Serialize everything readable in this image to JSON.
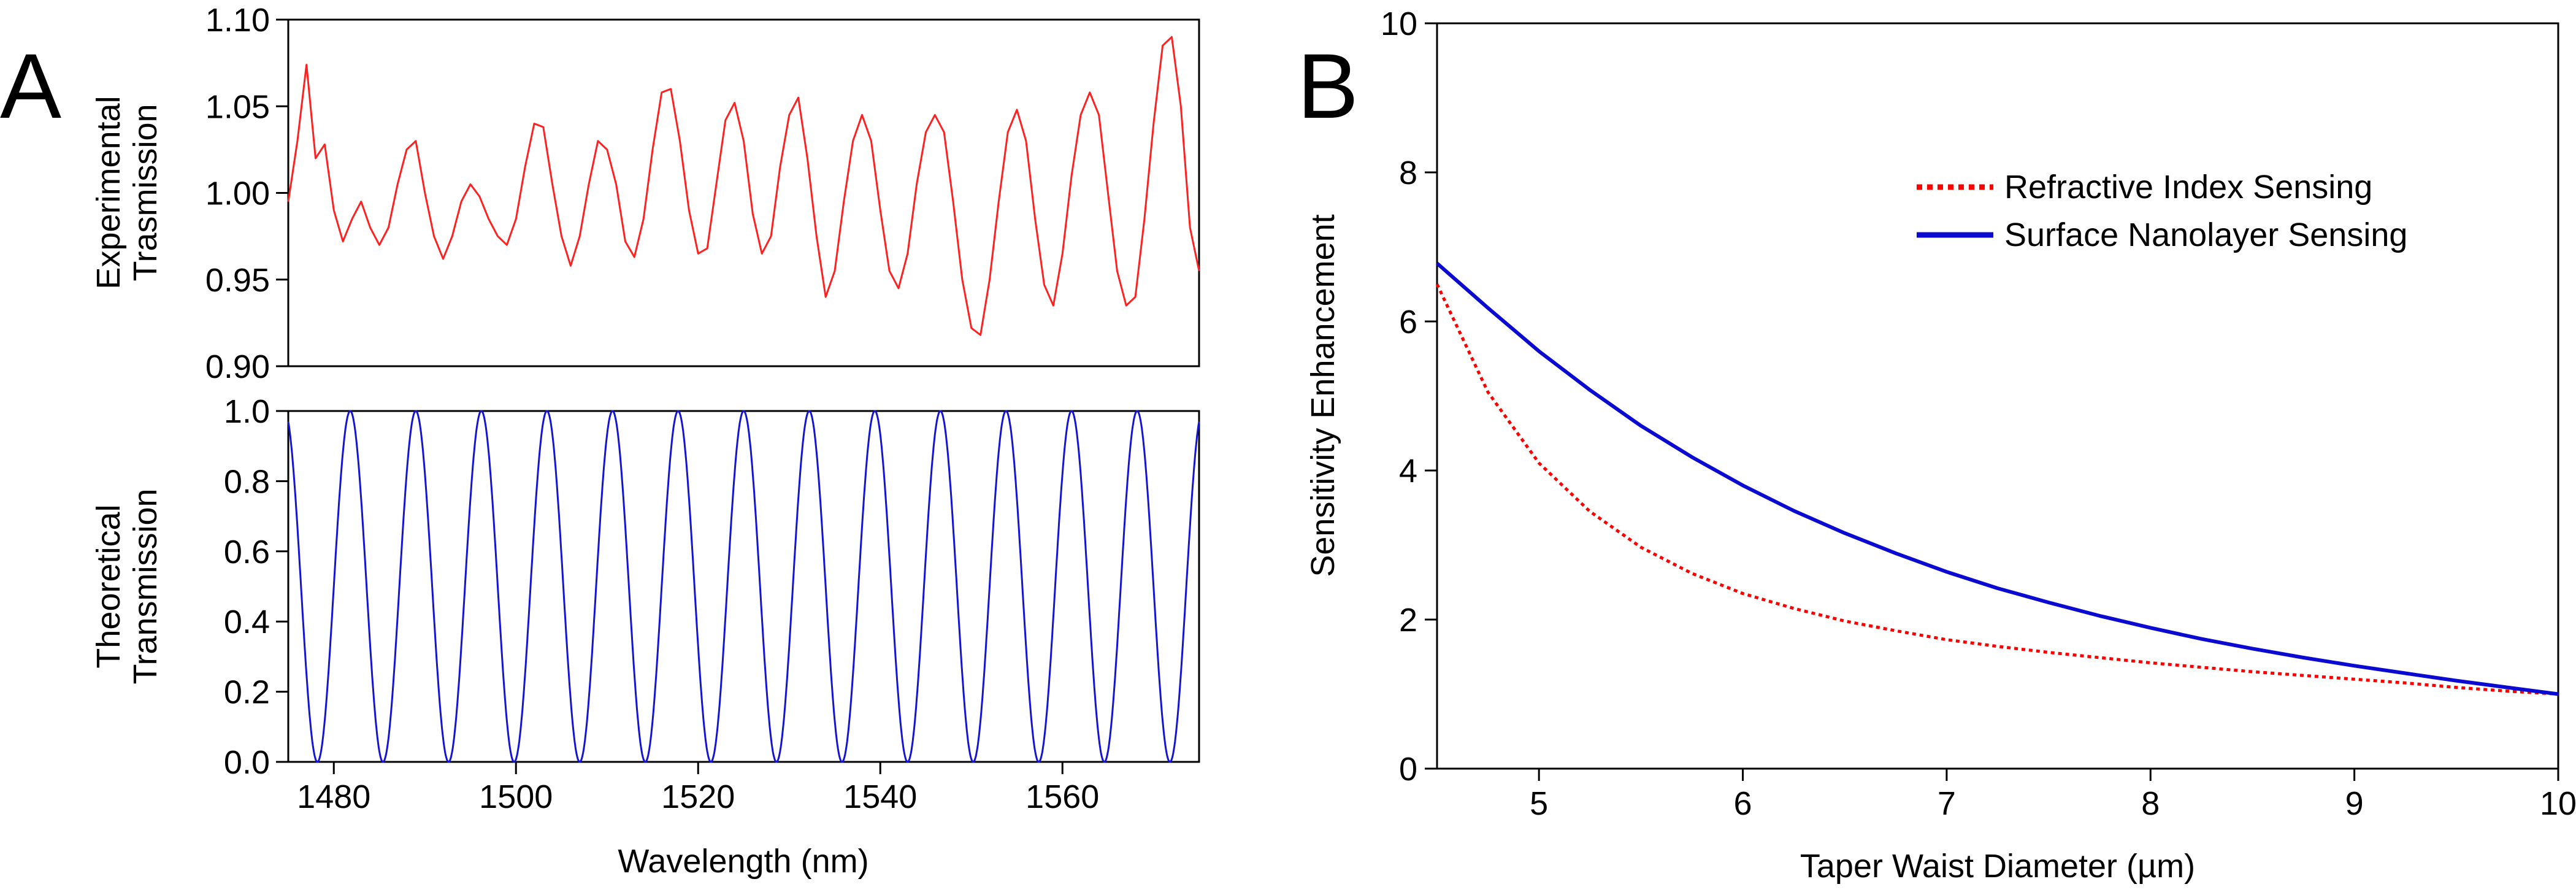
{
  "figure": {
    "panel_a_letter": "A",
    "panel_b_letter": "B",
    "colors": {
      "experimental": "#ff2020",
      "theoretical": "#1414d2",
      "refractive": "#ff0000",
      "nanolayer": "#0a0ad0",
      "axis": "#000000"
    }
  },
  "chart_data": [
    {
      "id": "A-top",
      "type": "line",
      "ylabel_lines": [
        "Experimental",
        "Trasmission"
      ],
      "xlim": [
        1475,
        1575
      ],
      "ylim": [
        0.9,
        1.1
      ],
      "yticks": [
        0.9,
        0.95,
        1.0,
        1.05,
        1.1
      ],
      "ytick_labels": [
        "0.90",
        "0.95",
        "1.00",
        "1.05",
        "1.10"
      ],
      "series": [
        {
          "name": "Experimental transmission",
          "x": [
            1475.0,
            1476.0,
            1477.0,
            1478.0,
            1479.0,
            1480.0,
            1481.0,
            1482.0,
            1483.0,
            1484.0,
            1485.0,
            1486.0,
            1487.0,
            1488.0,
            1489.0,
            1490.0,
            1491.0,
            1492.0,
            1493.0,
            1494.0,
            1495.0,
            1496.0,
            1497.0,
            1498.0,
            1499.0,
            1500.0,
            1501.0,
            1502.0,
            1503.0,
            1504.0,
            1505.0,
            1506.0,
            1507.0,
            1508.0,
            1509.0,
            1510.0,
            1511.0,
            1512.0,
            1513.0,
            1514.0,
            1515.0,
            1516.0,
            1517.0,
            1518.0,
            1519.0,
            1520.0,
            1521.0,
            1522.0,
            1523.0,
            1524.0,
            1525.0,
            1526.0,
            1527.0,
            1528.0,
            1529.0,
            1530.0,
            1531.0,
            1532.0,
            1533.0,
            1534.0,
            1535.0,
            1536.0,
            1537.0,
            1538.0,
            1539.0,
            1540.0,
            1541.0,
            1542.0,
            1543.0,
            1544.0,
            1545.0,
            1546.0,
            1547.0,
            1548.0,
            1549.0,
            1550.0,
            1551.0,
            1552.0,
            1553.0,
            1554.0,
            1555.0,
            1556.0,
            1557.0,
            1558.0,
            1559.0,
            1560.0,
            1561.0,
            1562.0,
            1563.0,
            1564.0,
            1565.0,
            1566.0,
            1567.0,
            1568.0,
            1569.0,
            1570.0,
            1571.0,
            1572.0,
            1573.0,
            1574.0,
            1575.0
          ],
          "y": [
            0.995,
            1.03,
            1.074,
            1.02,
            1.028,
            0.99,
            0.972,
            0.985,
            0.995,
            0.98,
            0.97,
            0.98,
            1.005,
            1.025,
            1.03,
            1.0,
            0.975,
            0.962,
            0.975,
            0.995,
            1.005,
            0.998,
            0.985,
            0.975,
            0.97,
            0.985,
            1.015,
            1.04,
            1.038,
            1.005,
            0.975,
            0.958,
            0.975,
            1.005,
            1.03,
            1.025,
            1.005,
            0.972,
            0.963,
            0.985,
            1.025,
            1.058,
            1.06,
            1.03,
            0.99,
            0.965,
            0.968,
            1.005,
            1.042,
            1.052,
            1.03,
            0.988,
            0.965,
            0.975,
            1.015,
            1.045,
            1.055,
            1.02,
            0.975,
            0.94,
            0.955,
            0.995,
            1.03,
            1.045,
            1.03,
            0.99,
            0.955,
            0.945,
            0.965,
            1.005,
            1.035,
            1.045,
            1.035,
            0.995,
            0.95,
            0.922,
            0.918,
            0.95,
            0.995,
            1.035,
            1.048,
            1.03,
            0.985,
            0.947,
            0.935,
            0.965,
            1.01,
            1.045,
            1.058,
            1.045,
            1.0,
            0.955,
            0.935,
            0.94,
            0.985,
            1.04,
            1.085,
            1.09,
            1.05,
            0.98,
            0.955
          ]
        }
      ]
    },
    {
      "id": "A-bottom",
      "type": "line",
      "ylabel_lines": [
        "Theoretical",
        "Transmission"
      ],
      "xlabel": "Wavelength (nm)",
      "xlim": [
        1475,
        1575
      ],
      "ylim": [
        0.0,
        1.0
      ],
      "xticks": [
        1480,
        1500,
        1520,
        1540,
        1560
      ],
      "xtick_labels": [
        "1480",
        "1500",
        "1520",
        "1540",
        "1560"
      ],
      "yticks": [
        0.0,
        0.2,
        0.4,
        0.6,
        0.8,
        1.0
      ],
      "ytick_labels": [
        "0.0",
        "0.2",
        "0.4",
        "0.6",
        "0.8",
        "1.0"
      ],
      "series": [
        {
          "name": "Theoretical transmission",
          "formula": "cos^2(pi*(x-1474.6)/7.2)",
          "period_nm": 7.2,
          "phase_nm": 1474.6
        }
      ]
    },
    {
      "id": "B",
      "type": "line",
      "xlabel": "Taper Waist Diameter (µm)",
      "ylabel": "Sensitivity Enhancement",
      "xlim": [
        4.5,
        10
      ],
      "ylim": [
        0,
        10
      ],
      "xticks": [
        5,
        6,
        7,
        8,
        9,
        10
      ],
      "xtick_labels": [
        "5",
        "6",
        "7",
        "8",
        "9",
        "10"
      ],
      "yticks": [
        0,
        2,
        4,
        6,
        8,
        10
      ],
      "ytick_labels": [
        "0",
        "2",
        "4",
        "6",
        "8",
        "10"
      ],
      "legend_location": "upper-right",
      "series": [
        {
          "name": "Refractive Index Sensing",
          "style": "dotted",
          "x": [
            4.5,
            4.75,
            5.0,
            5.25,
            5.5,
            5.75,
            6.0,
            6.25,
            6.5,
            6.75,
            7.0,
            7.25,
            7.5,
            7.75,
            8.0,
            8.25,
            8.5,
            8.75,
            9.0,
            9.25,
            9.5,
            9.75,
            10.0
          ],
          "y": [
            6.5,
            5.05,
            4.1,
            3.45,
            2.97,
            2.62,
            2.35,
            2.15,
            1.98,
            1.85,
            1.73,
            1.64,
            1.56,
            1.49,
            1.42,
            1.36,
            1.3,
            1.25,
            1.2,
            1.15,
            1.09,
            1.04,
            1.0
          ]
        },
        {
          "name": "Surface Nanolayer Sensing",
          "style": "solid",
          "x": [
            4.5,
            4.75,
            5.0,
            5.25,
            5.5,
            5.75,
            6.0,
            6.25,
            6.5,
            6.75,
            7.0,
            7.25,
            7.5,
            7.75,
            8.0,
            8.25,
            8.5,
            8.75,
            9.0,
            9.25,
            9.5,
            9.75,
            10.0
          ],
          "y": [
            6.78,
            6.18,
            5.6,
            5.08,
            4.6,
            4.18,
            3.8,
            3.46,
            3.16,
            2.89,
            2.64,
            2.42,
            2.23,
            2.05,
            1.89,
            1.74,
            1.61,
            1.49,
            1.38,
            1.28,
            1.18,
            1.09,
            1.0
          ]
        }
      ]
    }
  ]
}
